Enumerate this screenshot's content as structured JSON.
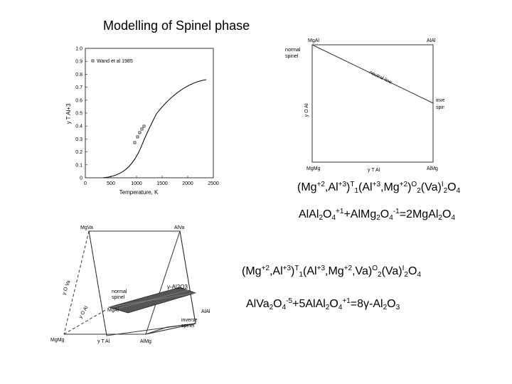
{
  "title": "Modelling of Spinel phase",
  "plot1": {
    "legend": "Wand et al 1985",
    "xlabel": "Temperature, K",
    "ylabel": "y T Al+3",
    "xticks": [
      "0",
      "500",
      "1000",
      "1500",
      "2000",
      "2500"
    ],
    "yticks": [
      "0",
      "0.1",
      "0.2",
      "0.3",
      "0.4",
      "0.5",
      "0.6",
      "0.7",
      "0.8",
      "0.9",
      "1.0"
    ]
  },
  "plot2": {
    "corner_tl": "MgAl",
    "corner_tr": "AlAl",
    "corner_bl": "MgMg",
    "corner_br": "AlMg",
    "normal1": "normal",
    "normal2": "spinel",
    "neutral": "neutral line",
    "inverse1": "inverse",
    "inverse2": "spinel",
    "xaxis": "y T Al",
    "yaxis": "y O Al"
  },
  "plot3": {
    "corner_mgva": "MgVa",
    "corner_alva": "AlVa",
    "corner_mgmg": "MgMg",
    "corner_almg": "AlMg",
    "corner_mgal": "MgAl",
    "corner_alal": "AlAl",
    "gamma": "γ-Al2O3",
    "normal1": "normal",
    "normal2": "spinel",
    "inverse1": "inverse",
    "inverse2": "spinel",
    "axis_va": "y O Va",
    "axis_al": "y O Al",
    "axis_t": "y T Al"
  },
  "formula1": {
    "a": "(Mg",
    "a_sup": "+2",
    "b": ",Al",
    "b_sup": "+3",
    "c": ")",
    "c_sup": "T",
    "c_sub": "1",
    "d": "(Al",
    "d_sup": "+3",
    "e": ",Mg",
    "e_sup": "+2",
    "f": ")",
    "f_sup": "O",
    "f_sub": "2",
    "g": "(Va)",
    "g_sup": "I",
    "g_sub": "2",
    "h": "O",
    "h_sub": "4"
  },
  "formula2": {
    "a": "AlAl",
    "a_sub": "2",
    "b": "O",
    "b_sub": "4",
    "b_sup": "+1",
    "c": "+AlMg",
    "c_sub": "2",
    "d": "O",
    "d_sub": "4",
    "d_sup": "-1",
    "e": "=2MgAl",
    "e_sub": "2",
    "f": "O",
    "f_sub": "4"
  },
  "formula3": {
    "a": "(Mg",
    "a_sup": "+2",
    "b": ",Al",
    "b_sup": "+3",
    "c": ")",
    "c_sup": "T",
    "c_sub": "1",
    "d": "(Al",
    "d_sup": "+3",
    "e": ",Mg",
    "e_sup": "+2",
    "f": ",Va)",
    "f_sup": "O",
    "f_sub": "2",
    "g": "(Va)",
    "g_sup": "I",
    "g_sub": "2",
    "h": "O",
    "h_sub": "4"
  },
  "formula4": {
    "a": "AlVa",
    "a_sub": "2",
    "b": "O",
    "b_sub": "4",
    "b_sup": "-5",
    "c": "+5AlAl",
    "c_sub": "2",
    "d": "O",
    "d_sub": "4",
    "d_sup": "+1",
    "e": "=8γ-Al",
    "e_sub": "2",
    "f": "O",
    "f_sub": "3"
  }
}
